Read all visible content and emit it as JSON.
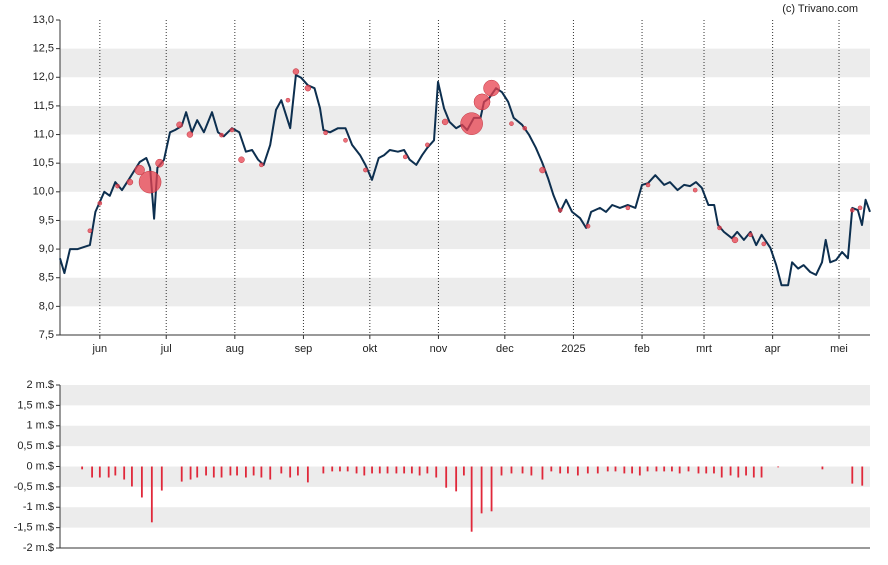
{
  "chart_data": [
    {
      "type": "line",
      "watermark": "(c) Trivano.com",
      "color": "#0d2f4f",
      "band_grid": true,
      "band_color": "#ececec",
      "xlim": [
        0,
        366
      ],
      "xticks": [
        {
          "value": 18,
          "label": "jun"
        },
        {
          "value": 48,
          "label": "jul"
        },
        {
          "value": 79,
          "label": "aug"
        },
        {
          "value": 110,
          "label": "sep"
        },
        {
          "value": 140,
          "label": "okt"
        },
        {
          "value": 171,
          "label": "nov"
        },
        {
          "value": 201,
          "label": "dec"
        },
        {
          "value": 232,
          "label": "2025"
        },
        {
          "value": 263,
          "label": "feb"
        },
        {
          "value": 291,
          "label": "mrt"
        },
        {
          "value": 322,
          "label": "apr"
        },
        {
          "value": 352,
          "label": "mei"
        }
      ],
      "ylim": [
        7.5,
        13
      ],
      "yticks": [
        {
          "value": 7.5,
          "label": "7,5"
        },
        {
          "value": 8,
          "label": "8,0"
        },
        {
          "value": 8.5,
          "label": "8,5"
        },
        {
          "value": 9,
          "label": "9,0"
        },
        {
          "value": 9.5,
          "label": "9,5"
        },
        {
          "value": 10,
          "label": "10,0"
        },
        {
          "value": 10.5,
          "label": "10,5"
        },
        {
          "value": 11,
          "label": "11,0"
        },
        {
          "value": 11.5,
          "label": "11,5"
        },
        {
          "value": 12,
          "label": "12,0"
        },
        {
          "value": 12.5,
          "label": "12,5"
        },
        {
          "value": 13,
          "label": "13,0"
        }
      ],
      "x": [
        0,
        2,
        4.5,
        8,
        13.5,
        16,
        20,
        22.5,
        25,
        28,
        31.5,
        36,
        39,
        40.7,
        42.5,
        44,
        47,
        49.7,
        52,
        55,
        57,
        59.6,
        62,
        65,
        68.7,
        71.4,
        74,
        77.7,
        81,
        84,
        86.8,
        89.5,
        92,
        95,
        97.6,
        100,
        104,
        106.6,
        109,
        112,
        115,
        117.5,
        119,
        122,
        125.6,
        129,
        132,
        135.6,
        138,
        141,
        144,
        146.4,
        149,
        152.7,
        155.5,
        158,
        161,
        163.6,
        166,
        169,
        170.8,
        173.5,
        176,
        179,
        181.7,
        184,
        187,
        190,
        191.6,
        194,
        197,
        199.7,
        202.5,
        205,
        208.8,
        212,
        215,
        217.8,
        220.5,
        223,
        226,
        228.7,
        231.4,
        235,
        237.7,
        240,
        244,
        246.7,
        249.5,
        253,
        256.6,
        260,
        263,
        265.7,
        269,
        273,
        275.6,
        279,
        282,
        284.7,
        287.4,
        290,
        293,
        295.6,
        297.3,
        300,
        303.6,
        306,
        309,
        312,
        314.6,
        317,
        321,
        323.6,
        326,
        329,
        330.8,
        333.5,
        336,
        339,
        341.6,
        344.3,
        346,
        348,
        350.7,
        353.4,
        356,
        358,
        360.5,
        362.4,
        364,
        366
      ],
      "values": [
        8.84,
        8.58,
        9.0,
        9.0,
        9.07,
        9.65,
        10.0,
        9.93,
        10.17,
        10.03,
        10.24,
        10.52,
        10.59,
        10.42,
        9.53,
        10.42,
        10.56,
        11.04,
        11.08,
        11.15,
        11.39,
        11.04,
        11.25,
        11.04,
        11.39,
        11.04,
        10.97,
        11.11,
        11.04,
        10.7,
        10.73,
        10.56,
        10.47,
        10.82,
        11.43,
        11.6,
        11.11,
        12.04,
        11.99,
        11.86,
        11.81,
        11.46,
        11.08,
        11.04,
        11.11,
        11.11,
        10.82,
        10.64,
        10.47,
        10.21,
        10.59,
        10.64,
        10.73,
        10.7,
        10.73,
        10.56,
        10.47,
        10.64,
        10.77,
        10.9,
        11.92,
        11.46,
        11.22,
        11.11,
        11.17,
        11.08,
        11.29,
        11.29,
        11.57,
        11.64,
        11.81,
        11.74,
        11.57,
        11.29,
        11.17,
        10.99,
        10.77,
        10.52,
        10.24,
        9.94,
        9.65,
        9.86,
        9.65,
        9.54,
        9.37,
        9.65,
        9.72,
        9.65,
        9.77,
        9.72,
        9.77,
        9.72,
        10.12,
        10.15,
        10.29,
        10.12,
        10.17,
        10.03,
        10.12,
        10.1,
        10.17,
        10.07,
        9.77,
        9.77,
        9.42,
        9.3,
        9.19,
        9.3,
        9.16,
        9.3,
        9.07,
        9.25,
        9.02,
        8.72,
        8.37,
        8.37,
        8.77,
        8.66,
        8.72,
        8.6,
        8.55,
        8.77,
        9.16,
        8.77,
        8.81,
        8.95,
        8.84,
        9.72,
        9.68,
        9.42,
        9.86,
        9.65
      ],
      "bubbles": {
        "color": "#e8414f",
        "x": [
          13.5,
          18,
          26,
          31.6,
          36,
          40.7,
          45,
          54,
          58.7,
          73,
          77.7,
          82,
          91,
          103,
          106.6,
          112,
          120,
          129,
          138,
          156,
          166,
          174,
          186,
          190.7,
          195,
          204,
          210,
          218,
          226,
          238.6,
          256.6,
          265.7,
          287,
          298,
          305,
          312,
          318,
          358,
          361.5
        ],
        "values": [
          9.32,
          9.8,
          10.1,
          10.17,
          10.38,
          10.17,
          10.5,
          11.17,
          11.0,
          10.99,
          11.08,
          10.56,
          10.47,
          11.6,
          12.1,
          11.81,
          11.03,
          10.9,
          10.38,
          10.61,
          10.82,
          11.22,
          11.19,
          11.57,
          11.81,
          11.19,
          11.11,
          10.38,
          9.68,
          9.4,
          9.72,
          10.12,
          10.03,
          9.37,
          9.16,
          9.25,
          9.09,
          9.68,
          9.72
        ],
        "sizes": [
          0.05,
          0.05,
          0.05,
          0.11,
          0.3,
          1.5,
          0.2,
          0.11,
          0.11,
          0.05,
          0.05,
          0.11,
          0.05,
          0.05,
          0.11,
          0.11,
          0.05,
          0.05,
          0.05,
          0.05,
          0.05,
          0.11,
          1.5,
          0.8,
          0.8,
          0.05,
          0.05,
          0.11,
          0.05,
          0.05,
          0.05,
          0.05,
          0.05,
          0.05,
          0.11,
          0.05,
          0.05,
          0.05,
          0.05
        ]
      }
    },
    {
      "type": "bar",
      "color": "#e0283a",
      "band_grid": true,
      "band_color": "#ececec",
      "xlim": [
        0,
        366
      ],
      "ylim": [
        -2,
        2
      ],
      "yticks": [
        {
          "value": -2,
          "label": "-2 m.$"
        },
        {
          "value": -1.5,
          "label": "-1,5 m.$"
        },
        {
          "value": -1,
          "label": "-1 m.$"
        },
        {
          "value": -0.5,
          "label": "-0,5 m.$"
        },
        {
          "value": 0,
          "label": "0 m.$"
        },
        {
          "value": 0.5,
          "label": "0,5 m.$"
        },
        {
          "value": 1,
          "label": "1 m.$"
        },
        {
          "value": 1.5,
          "label": "1,5 m.$"
        },
        {
          "value": 2,
          "label": "2 m.$"
        }
      ],
      "x": [
        10,
        14.5,
        18,
        22,
        25,
        29,
        32.5,
        37,
        41.5,
        46,
        55,
        59,
        62,
        66,
        69.5,
        73,
        77,
        80,
        84,
        87.5,
        91,
        95,
        100,
        104,
        107.5,
        112,
        119,
        123,
        126.5,
        130,
        134,
        137.5,
        141,
        144.5,
        148,
        152,
        155.5,
        159,
        162.5,
        166,
        170,
        174.5,
        179,
        182.5,
        186,
        190.5,
        195,
        199.5,
        204,
        209,
        213,
        218,
        222,
        226,
        229.5,
        234,
        238.5,
        243,
        247.5,
        251,
        255,
        258.5,
        262,
        265.5,
        269.5,
        273,
        276.5,
        280,
        284,
        288.5,
        292,
        295.5,
        299,
        303,
        306.5,
        310,
        313.5,
        317,
        324.5,
        344.5,
        358,
        362.5
      ],
      "values": [
        -0.07,
        -0.27,
        -0.27,
        -0.27,
        -0.22,
        -0.32,
        -0.49,
        -0.76,
        -1.37,
        -0.59,
        -0.37,
        -0.32,
        -0.27,
        -0.22,
        -0.27,
        -0.27,
        -0.22,
        -0.22,
        -0.27,
        -0.22,
        -0.27,
        -0.32,
        -0.17,
        -0.27,
        -0.22,
        -0.39,
        -0.17,
        -0.12,
        -0.12,
        -0.12,
        -0.17,
        -0.22,
        -0.17,
        -0.17,
        -0.17,
        -0.17,
        -0.17,
        -0.17,
        -0.22,
        -0.17,
        -0.27,
        -0.52,
        -0.61,
        -0.22,
        -1.6,
        -1.15,
        -1.1,
        -0.22,
        -0.17,
        -0.17,
        -0.22,
        -0.32,
        -0.12,
        -0.17,
        -0.17,
        -0.22,
        -0.17,
        -0.17,
        -0.12,
        -0.12,
        -0.17,
        -0.17,
        -0.22,
        -0.12,
        -0.12,
        -0.12,
        -0.12,
        -0.17,
        -0.12,
        -0.17,
        -0.17,
        -0.17,
        -0.27,
        -0.22,
        -0.27,
        -0.22,
        -0.27,
        -0.27,
        -0.02,
        -0.07,
        -0.42,
        -0.47
      ]
    }
  ]
}
